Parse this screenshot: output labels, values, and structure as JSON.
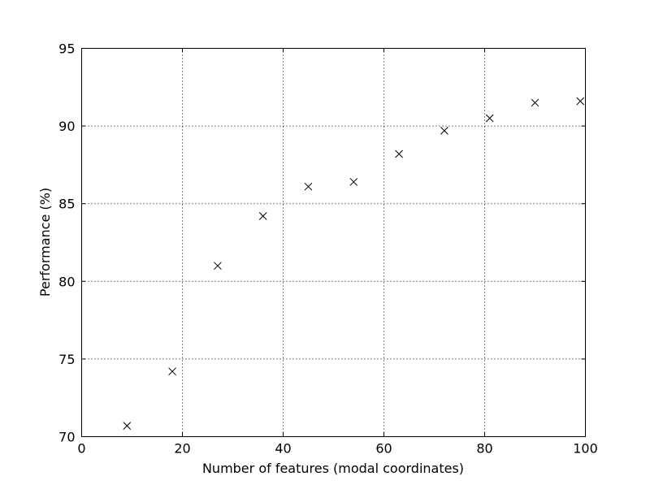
{
  "chart_data": {
    "type": "scatter",
    "title": "",
    "xlabel": "Number of features (modal coordinates)",
    "ylabel": "Performance (%)",
    "xlim": [
      0,
      100
    ],
    "ylim": [
      70,
      95
    ],
    "xticks": [
      0,
      20,
      40,
      60,
      80,
      100
    ],
    "yticks": [
      70,
      75,
      80,
      85,
      90,
      95
    ],
    "grid": true,
    "marker": "x",
    "marker_color": "#000000",
    "series": [
      {
        "x": [
          9,
          18,
          27,
          36,
          45,
          54,
          63,
          72,
          81,
          90,
          99
        ],
        "y": [
          70.7,
          74.2,
          81.0,
          84.2,
          86.1,
          86.4,
          88.2,
          89.7,
          90.5,
          91.5,
          91.6
        ]
      }
    ]
  }
}
